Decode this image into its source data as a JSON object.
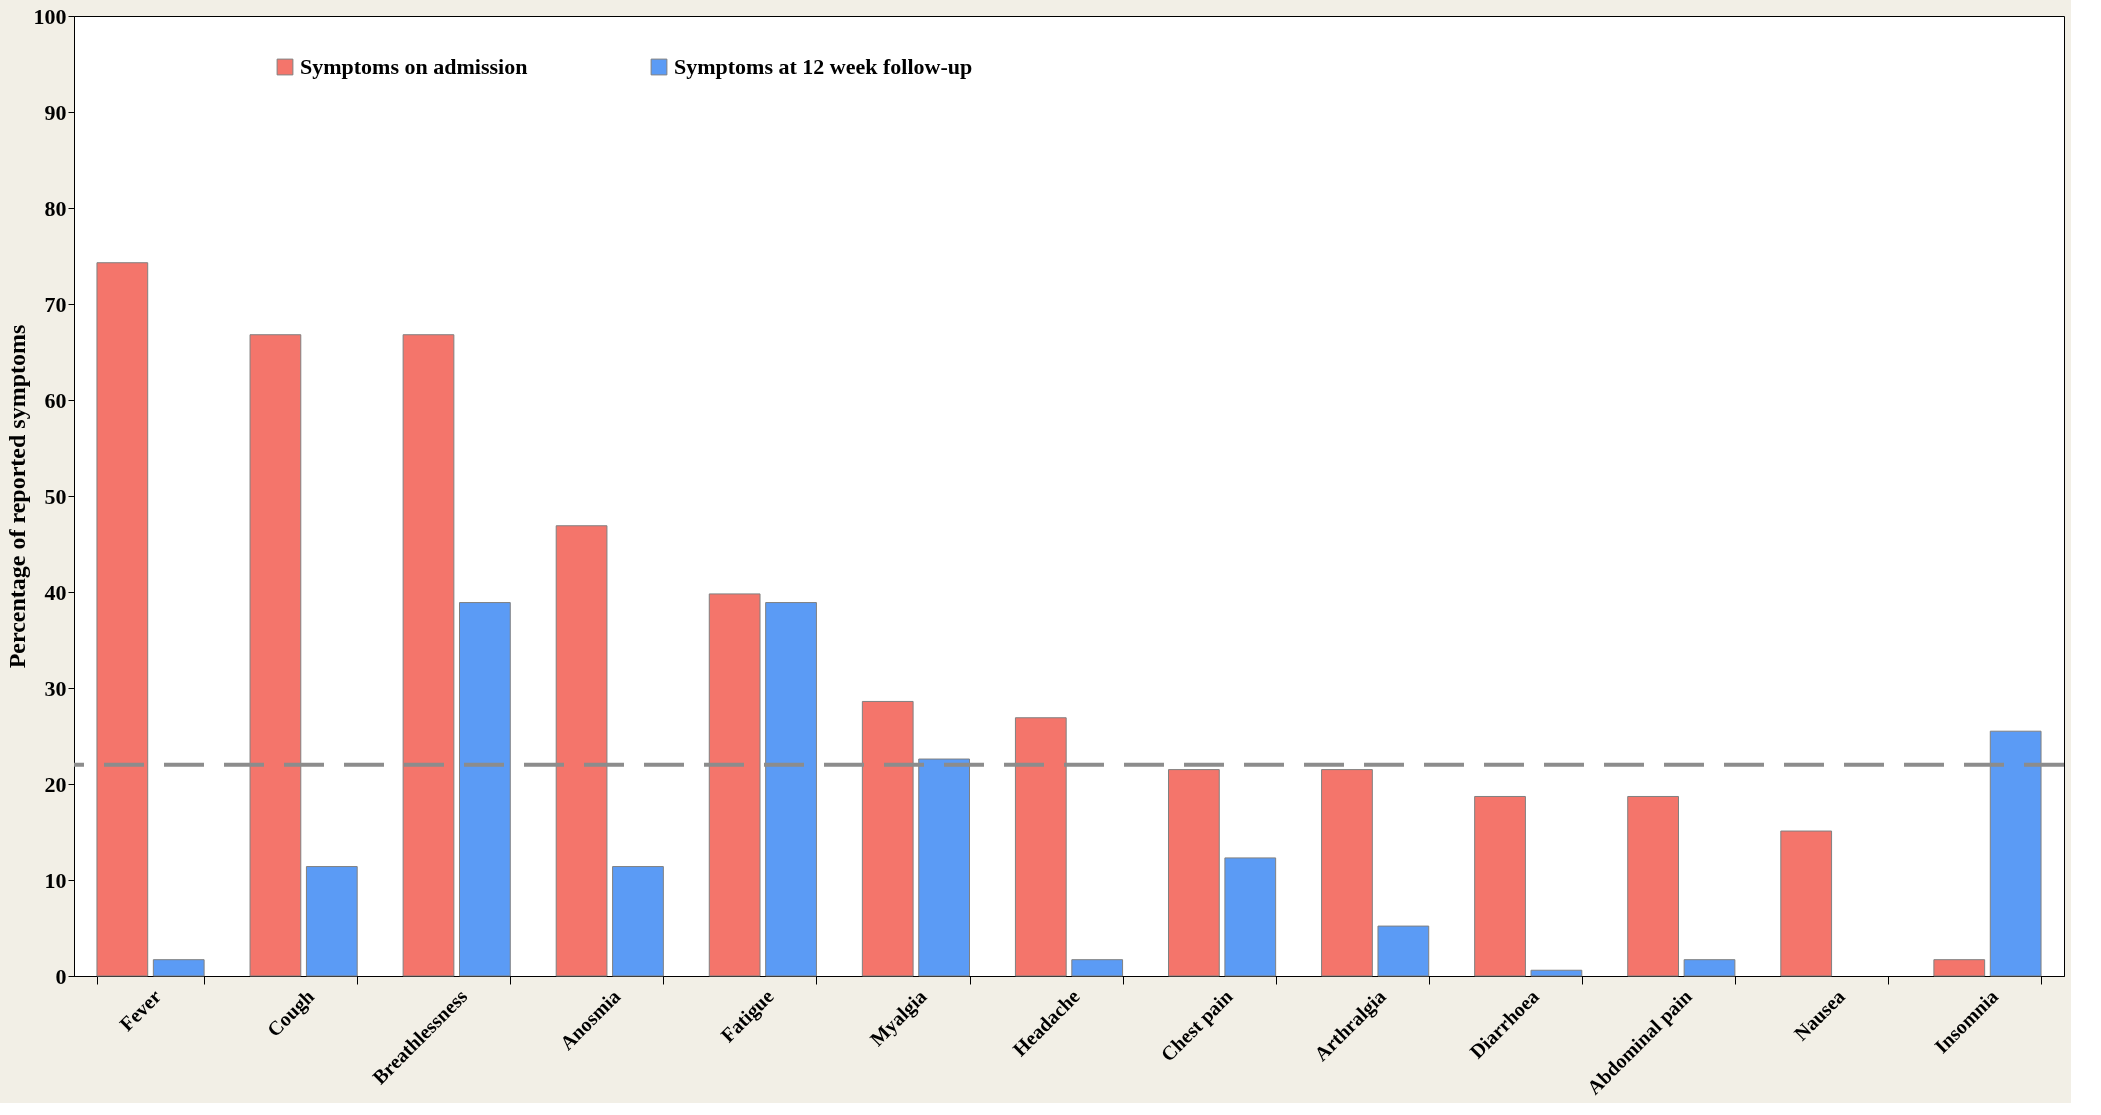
{
  "chart_data": {
    "type": "bar",
    "ylabel": "Percentage of reported symptoms",
    "categories": [
      "Fever",
      "Cough",
      "Breathlessness",
      "Anosmia",
      "Fatigue",
      "Myalgia",
      "Headache",
      "Chest pain",
      "Arthralgia",
      "Diarrhoea",
      "Abdominal pain",
      "Nausea",
      "Insomnia"
    ],
    "series": [
      {
        "name": "Symptoms on admission",
        "color": "#f4756b",
        "values": [
          74.3,
          66.8,
          66.8,
          46.9,
          39.8,
          28.6,
          26.9,
          21.5,
          21.5,
          18.7,
          18.7,
          15.1,
          1.7
        ]
      },
      {
        "name": "Symptoms at 12 week follow-up",
        "color": "#5b9bf5",
        "values": [
          1.7,
          11.4,
          38.9,
          11.4,
          38.9,
          22.6,
          1.7,
          12.3,
          5.2,
          0.6,
          1.7,
          null,
          25.5
        ]
      }
    ],
    "ylim": [
      0,
      100
    ],
    "yticks": [
      0,
      10,
      20,
      30,
      40,
      50,
      60,
      70,
      80,
      90,
      100
    ],
    "grid": false,
    "legend": "top",
    "ref_lines": [
      {
        "axis": "y",
        "value": 22,
        "color": "#8c8c8c",
        "line_style": "dashed"
      }
    ]
  }
}
